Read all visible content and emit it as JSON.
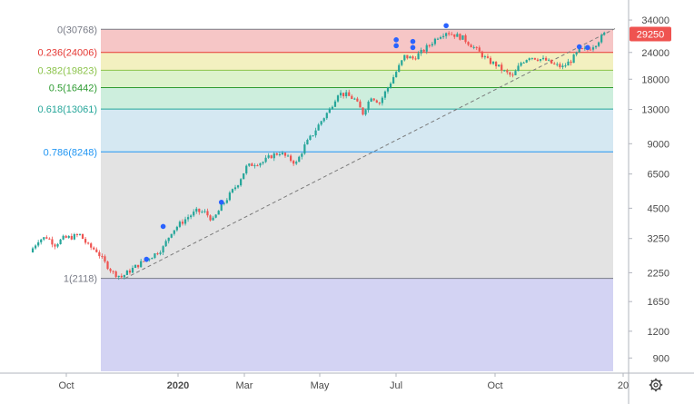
{
  "chart_data": {
    "type": "candlestick",
    "y_scale": "log",
    "ylim": [
      780,
      39000
    ],
    "y_ticks": [
      34000,
      24000,
      18000,
      13000,
      9000,
      6500,
      4500,
      3250,
      2250,
      1650,
      1200,
      900
    ],
    "x_ticks": [
      "Oct",
      "2020",
      "Mar",
      "May",
      "Jul",
      "Oct",
      "20"
    ],
    "last_price": {
      "value": 29250,
      "label": "29250",
      "color": "#ef5350"
    },
    "fibonacci": {
      "low": 2118,
      "high": 30768,
      "levels": [
        {
          "ratio": "0",
          "value": 30768,
          "label": "0(30768)",
          "color": "#787b86",
          "fill": "#f6c6c6"
        },
        {
          "ratio": "0.236",
          "value": 24006,
          "label": "0.236(24006)",
          "color": "#e53935",
          "fill": "#f3f0c0"
        },
        {
          "ratio": "0.382",
          "value": 19823,
          "label": "0.382(19823)",
          "color": "#8bc34a",
          "fill": "#ddf2cc"
        },
        {
          "ratio": "0.5",
          "value": 16442,
          "label": "0.5(16442)",
          "color": "#2e9b32",
          "fill": "#cdeedd"
        },
        {
          "ratio": "0.618",
          "value": 13061,
          "label": "0.618(13061)",
          "color": "#26a69a",
          "fill": "#d5e8f2"
        },
        {
          "ratio": "0.786",
          "value": 8248,
          "label": "0.786(8248)",
          "color": "#2196f3",
          "fill": "#e3e3e3"
        },
        {
          "ratio": "1",
          "value": 2118,
          "label": "1(2118)",
          "color": "#787b86",
          "fill": "#d3d3f3"
        }
      ]
    },
    "trendline": {
      "from": {
        "x": "2019-11-20",
        "y": 2118
      },
      "to": {
        "x": "2021-01-05",
        "y": 31000
      }
    },
    "up_color": "#26a69a",
    "down_color": "#ef5350",
    "price_path": [
      {
        "x": "2019-09-01",
        "y": 2800
      },
      {
        "x": "2019-09-08",
        "y": 3200
      },
      {
        "x": "2019-09-15",
        "y": 3300
      },
      {
        "x": "2019-09-22",
        "y": 3050
      },
      {
        "x": "2019-09-29",
        "y": 3250
      },
      {
        "x": "2019-10-06",
        "y": 3300
      },
      {
        "x": "2019-10-13",
        "y": 3380
      },
      {
        "x": "2019-10-20",
        "y": 3000
      },
      {
        "x": "2019-10-27",
        "y": 2850
      },
      {
        "x": "2019-11-03",
        "y": 2500
      },
      {
        "x": "2019-11-10",
        "y": 2250
      },
      {
        "x": "2019-11-17",
        "y": 2150
      },
      {
        "x": "2019-11-24",
        "y": 2300
      },
      {
        "x": "2019-12-01",
        "y": 2450
      },
      {
        "x": "2019-12-08",
        "y": 2600
      },
      {
        "x": "2019-12-15",
        "y": 2750
      },
      {
        "x": "2019-12-22",
        "y": 2950
      },
      {
        "x": "2019-12-29",
        "y": 3500
      },
      {
        "x": "2020-01-05",
        "y": 3800
      },
      {
        "x": "2020-01-12",
        "y": 4100
      },
      {
        "x": "2020-01-19",
        "y": 4350
      },
      {
        "x": "2020-01-26",
        "y": 4300
      },
      {
        "x": "2020-02-02",
        "y": 3950
      },
      {
        "x": "2020-02-09",
        "y": 4600
      },
      {
        "x": "2020-02-16",
        "y": 5200
      },
      {
        "x": "2020-02-23",
        "y": 5900
      },
      {
        "x": "2020-03-01",
        "y": 7000
      },
      {
        "x": "2020-03-08",
        "y": 7300
      },
      {
        "x": "2020-03-15",
        "y": 7400
      },
      {
        "x": "2020-03-22",
        "y": 7900
      },
      {
        "x": "2020-03-29",
        "y": 8200
      },
      {
        "x": "2020-04-05",
        "y": 7700
      },
      {
        "x": "2020-04-12",
        "y": 7300
      },
      {
        "x": "2020-04-19",
        "y": 8800
      },
      {
        "x": "2020-04-26",
        "y": 10000
      },
      {
        "x": "2020-05-03",
        "y": 11500
      },
      {
        "x": "2020-05-10",
        "y": 13000
      },
      {
        "x": "2020-05-17",
        "y": 15500
      },
      {
        "x": "2020-05-24",
        "y": 15200
      },
      {
        "x": "2020-05-31",
        "y": 14500
      },
      {
        "x": "2020-06-07",
        "y": 12500
      },
      {
        "x": "2020-06-14",
        "y": 15000
      },
      {
        "x": "2020-06-21",
        "y": 14000
      },
      {
        "x": "2020-06-28",
        "y": 16500
      },
      {
        "x": "2020-07-05",
        "y": 19500
      },
      {
        "x": "2020-07-12",
        "y": 23000
      },
      {
        "x": "2020-07-19",
        "y": 22500
      },
      {
        "x": "2020-07-26",
        "y": 24000
      },
      {
        "x": "2020-08-02",
        "y": 26000
      },
      {
        "x": "2020-08-09",
        "y": 28500
      },
      {
        "x": "2020-08-16",
        "y": 30000
      },
      {
        "x": "2020-08-23",
        "y": 29000
      },
      {
        "x": "2020-08-30",
        "y": 28000
      },
      {
        "x": "2020-09-06",
        "y": 26000
      },
      {
        "x": "2020-09-13",
        "y": 24000
      },
      {
        "x": "2020-09-20",
        "y": 22000
      },
      {
        "x": "2020-09-27",
        "y": 21000
      },
      {
        "x": "2020-10-04",
        "y": 19500
      },
      {
        "x": "2020-10-11",
        "y": 18500
      },
      {
        "x": "2020-10-18",
        "y": 21500
      },
      {
        "x": "2020-10-25",
        "y": 23000
      },
      {
        "x": "2020-11-01",
        "y": 22500
      },
      {
        "x": "2020-11-08",
        "y": 22000
      },
      {
        "x": "2020-11-15",
        "y": 21000
      },
      {
        "x": "2020-11-22",
        "y": 20500
      },
      {
        "x": "2020-11-29",
        "y": 22000
      },
      {
        "x": "2020-12-06",
        "y": 24500
      },
      {
        "x": "2020-12-13",
        "y": 24800
      },
      {
        "x": "2020-12-20",
        "y": 26500
      },
      {
        "x": "2020-12-27",
        "y": 29250
      }
    ],
    "event_markers": [
      {
        "x": "2019-12-08",
        "y": 2600
      },
      {
        "x": "2019-12-22",
        "y": 3700
      },
      {
        "x": "2020-02-09",
        "y": 4800
      },
      {
        "x": "2020-07-05",
        "y": 27500
      },
      {
        "x": "2020-07-05",
        "y": 25800
      },
      {
        "x": "2020-07-19",
        "y": 27000
      },
      {
        "x": "2020-07-19",
        "y": 25300
      },
      {
        "x": "2020-08-16",
        "y": 32000
      },
      {
        "x": "2020-12-06",
        "y": 25500
      },
      {
        "x": "2020-12-13",
        "y": 25300
      }
    ]
  },
  "settings_icon": "gear-icon"
}
